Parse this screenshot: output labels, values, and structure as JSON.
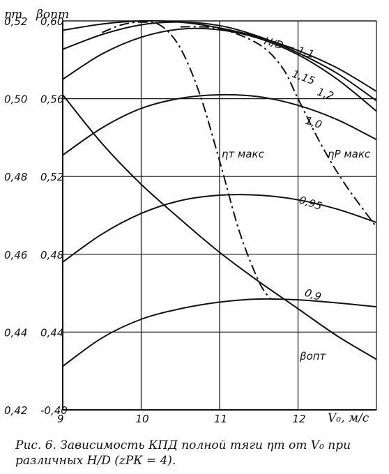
{
  "chart_data": {
    "type": "line",
    "x": {
      "min": 9,
      "max": 13,
      "ticks": [
        9,
        10,
        11,
        12
      ],
      "label": "V₀, м/с"
    },
    "y_left": {
      "title": "ηт",
      "min": 0.42,
      "max": 0.52,
      "ticks": [
        0.42,
        0.44,
        0.46,
        0.48,
        0.5,
        0.52
      ],
      "tick_labels": [
        "0,42",
        "0,44",
        "0,46",
        "0,48",
        "0,50",
        "0,52"
      ]
    },
    "y_right": {
      "title": "βопт",
      "min": 0.4,
      "max": 0.6,
      "ticks": [
        0.4,
        0.44,
        0.48,
        0.52,
        0.56,
        0.6
      ],
      "tick_labels": [
        "0,40",
        "0,44",
        "0,48",
        "0,52",
        "0,56",
        "0,60"
      ]
    },
    "grid": true,
    "series": [
      {
        "name": "H/D = 1,1",
        "label": "H/D = 1,1",
        "style": "solid",
        "axis": "left",
        "points": [
          [
            9,
            0.5176
          ],
          [
            9.5,
            0.5192
          ],
          [
            10,
            0.52
          ],
          [
            10.5,
            0.5197
          ],
          [
            11,
            0.5182
          ],
          [
            11.5,
            0.5158
          ],
          [
            12,
            0.5124
          ],
          [
            12.5,
            0.5079
          ],
          [
            13,
            0.5019
          ]
        ]
      },
      {
        "name": "H/D = 1,15",
        "label": "1,15",
        "style": "solid",
        "axis": "left",
        "points": [
          [
            9,
            0.5127
          ],
          [
            9.5,
            0.5165
          ],
          [
            10,
            0.519
          ],
          [
            10.5,
            0.5197
          ],
          [
            11,
            0.5188
          ],
          [
            11.5,
            0.516
          ],
          [
            12,
            0.5118
          ],
          [
            12.5,
            0.5065
          ],
          [
            13,
            0.4995
          ]
        ]
      },
      {
        "name": "H/D = 1,2",
        "label": "1,2",
        "style": "solid",
        "axis": "left",
        "points": [
          [
            9,
            0.505
          ],
          [
            9.5,
            0.5115
          ],
          [
            10,
            0.5158
          ],
          [
            10.5,
            0.5179
          ],
          [
            11,
            0.5177
          ],
          [
            11.5,
            0.5155
          ],
          [
            12,
            0.5113
          ],
          [
            12.5,
            0.505
          ],
          [
            13,
            0.4968
          ]
        ]
      },
      {
        "name": "H/D = 1,0",
        "label": "1,0",
        "style": "solid",
        "axis": "left",
        "points": [
          [
            9,
            0.4855
          ],
          [
            9.5,
            0.4925
          ],
          [
            10,
            0.4975
          ],
          [
            10.5,
            0.5001
          ],
          [
            11,
            0.501
          ],
          [
            11.5,
            0.5005
          ],
          [
            12,
            0.4983
          ],
          [
            12.5,
            0.4946
          ],
          [
            13,
            0.4895
          ]
        ]
      },
      {
        "name": "H/D = 0,95",
        "label": "0,95",
        "style": "solid",
        "axis": "left",
        "points": [
          [
            9,
            0.458
          ],
          [
            9.5,
            0.4652
          ],
          [
            10,
            0.4705
          ],
          [
            10.5,
            0.4738
          ],
          [
            11,
            0.4752
          ],
          [
            11.5,
            0.4752
          ],
          [
            12,
            0.474
          ],
          [
            12.5,
            0.4716
          ],
          [
            13,
            0.4682
          ]
        ]
      },
      {
        "name": "H/D = 0,9",
        "label": "0,9",
        "style": "solid",
        "axis": "left",
        "points": [
          [
            9,
            0.4312
          ],
          [
            9.5,
            0.4385
          ],
          [
            10,
            0.4433
          ],
          [
            10.5,
            0.446
          ],
          [
            11,
            0.4477
          ],
          [
            11.5,
            0.4485
          ],
          [
            12,
            0.4483
          ],
          [
            12.5,
            0.4475
          ],
          [
            13,
            0.4465
          ]
        ]
      },
      {
        "name": "βопт",
        "label": "βопт",
        "style": "solid",
        "axis": "right",
        "points": [
          [
            9,
            0.562
          ],
          [
            9.5,
            0.537
          ],
          [
            10,
            0.516
          ],
          [
            10.5,
            0.498
          ],
          [
            11,
            0.481
          ],
          [
            11.5,
            0.466
          ],
          [
            12,
            0.452
          ],
          [
            12.5,
            0.438
          ],
          [
            13,
            0.426
          ]
        ]
      },
      {
        "name": "ηт макс",
        "label": "ηт макс",
        "style": "dashdot",
        "axis": "left",
        "points": [
          [
            9.5,
            0.517
          ],
          [
            9.75,
            0.519
          ],
          [
            10,
            0.5197
          ],
          [
            10.25,
            0.5188
          ],
          [
            10.5,
            0.513
          ],
          [
            10.75,
            0.501
          ],
          [
            11,
            0.484
          ],
          [
            11.25,
            0.466
          ],
          [
            11.5,
            0.453
          ],
          [
            11.65,
            0.4485
          ]
        ]
      },
      {
        "name": "ηP макс",
        "label": "ηP макс",
        "style": "dashdot",
        "axis": "left",
        "points": [
          [
            10.5,
            0.5185
          ],
          [
            11,
            0.518
          ],
          [
            11.5,
            0.514
          ],
          [
            11.8,
            0.508
          ],
          [
            12,
            0.5
          ],
          [
            12.3,
            0.488
          ],
          [
            12.6,
            0.478
          ],
          [
            13,
            0.467
          ]
        ]
      }
    ]
  },
  "caption": {
    "line1": "Рис. 6. Зависимость КПД полной тяги ηт от V₀ при",
    "line2": "различных H/D (zРК = 4)."
  }
}
